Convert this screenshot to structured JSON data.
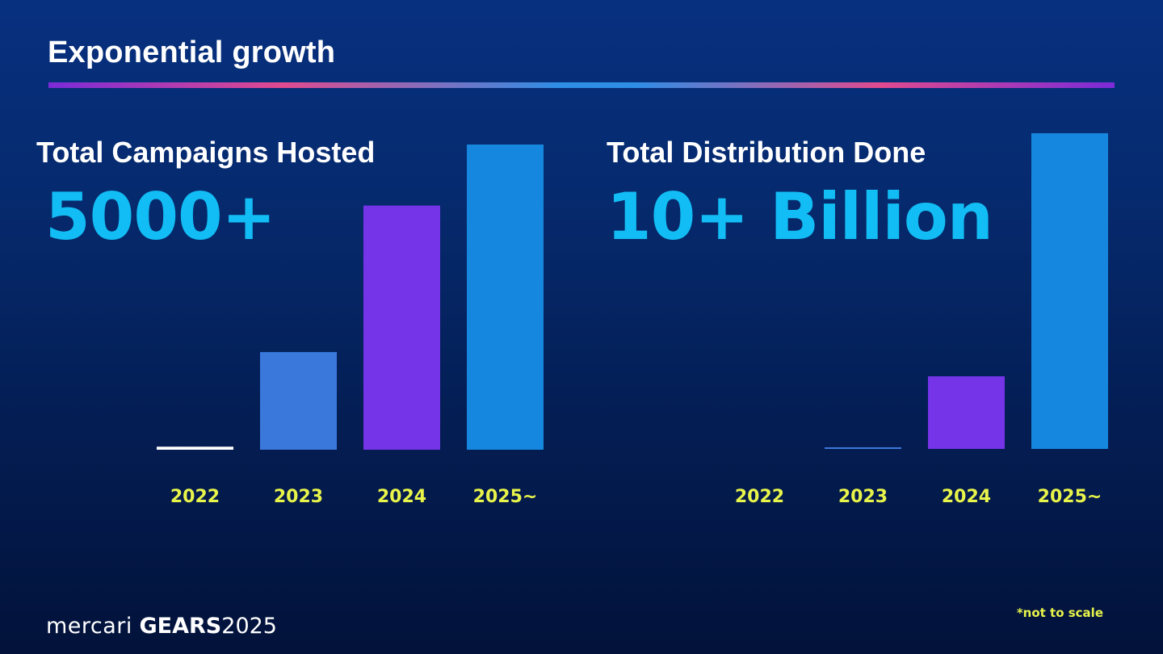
{
  "slide": {
    "title": "Exponential growth",
    "footnote": "*not to scale",
    "footer": {
      "brand": "mercari",
      "event": "GEARS",
      "year": "2025"
    }
  },
  "chart_data": [
    {
      "type": "bar",
      "title": "Total Campaigns Hosted",
      "headline": "5000+",
      "categories": [
        "2022",
        "2023",
        "2024",
        "2025~"
      ],
      "values": [
        1,
        32,
        80,
        100
      ],
      "ylim": [
        0,
        100
      ],
      "colors": [
        "#ffffff",
        "#3a78dc",
        "#7534e8",
        "#1687de"
      ],
      "xlabel": "",
      "ylabel": "",
      "grid": false
    },
    {
      "type": "bar",
      "title": "Total Distribution Done",
      "headline": "10+ Billion",
      "categories": [
        "2022",
        "2023",
        "2024",
        "2025~"
      ],
      "values": [
        0,
        0.5,
        23,
        100
      ],
      "ylim": [
        0,
        100
      ],
      "colors": [
        "#ffffff",
        "#3a78dc",
        "#7534e8",
        "#1687de"
      ],
      "xlabel": "",
      "ylabel": "",
      "grid": false
    }
  ]
}
